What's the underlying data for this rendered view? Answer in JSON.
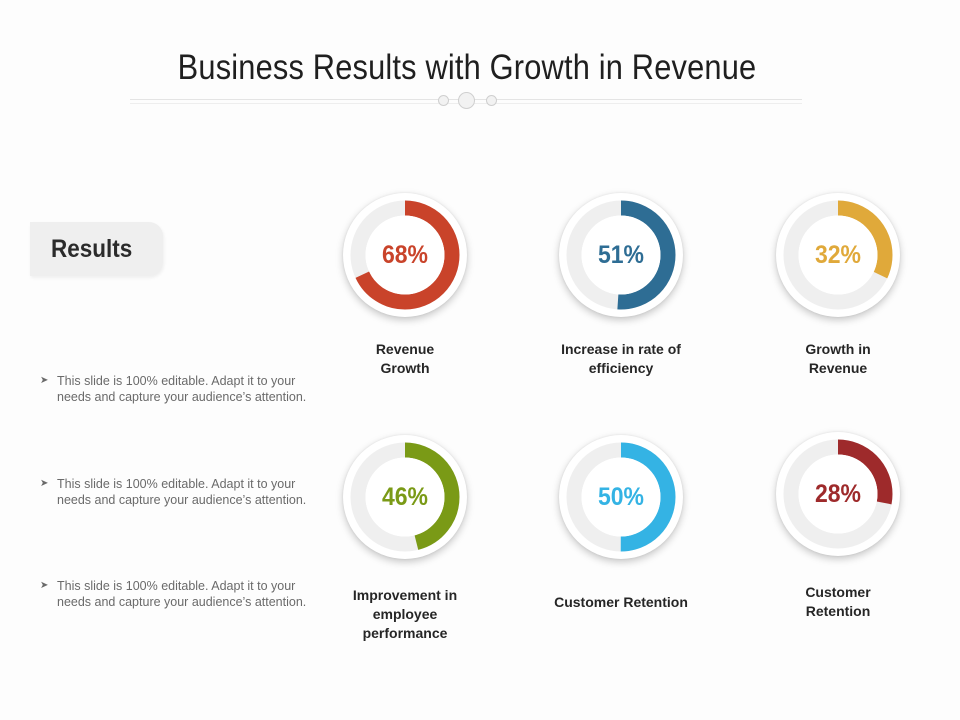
{
  "slide": {
    "title": "Business Results with Growth in Revenue",
    "section_label": "Results",
    "bullets": [
      {
        "line1": "This slide is 100% editable. Adapt it to your",
        "line2": "needs and capture your audience’s attention."
      },
      {
        "line1": "This slide is 100% editable. Adapt it to your",
        "line2": "needs and capture your audience’s attention."
      },
      {
        "line1": "This slide is 100% editable. Adapt it to your",
        "line2": "needs and capture your audience’s attention."
      }
    ],
    "bullet_icon": "arrowhead-bullet-icon"
  },
  "chart_data": [
    {
      "type": "pie",
      "value_label": "68%",
      "value": 68,
      "label": [
        "Revenue",
        "Growth"
      ],
      "color": "#c9432a"
    },
    {
      "type": "pie",
      "value_label": "51%",
      "value": 51,
      "label": [
        "Increase in rate of",
        "efficiency"
      ],
      "color": "#2e6d94"
    },
    {
      "type": "pie",
      "value_label": "32%",
      "value": 32,
      "label": [
        "Growth in",
        "Revenue"
      ],
      "color": "#e0a93a"
    },
    {
      "type": "pie",
      "value_label": "46%",
      "value": 46,
      "label": [
        "Improvement in",
        "employee",
        "performance"
      ],
      "color": "#7a9a16"
    },
    {
      "type": "pie",
      "value_label": "50%",
      "value": 50,
      "label": [
        "Customer Retention"
      ],
      "color": "#34b3e4"
    },
    {
      "type": "pie",
      "value_label": "28%",
      "value": 28,
      "label": [
        "Customer",
        "Retention"
      ],
      "color": "#9e2a2b"
    }
  ],
  "colors": {
    "track": "#efefef",
    "title": "#1f1f1f",
    "bullet_text": "#6a6a6a"
  }
}
